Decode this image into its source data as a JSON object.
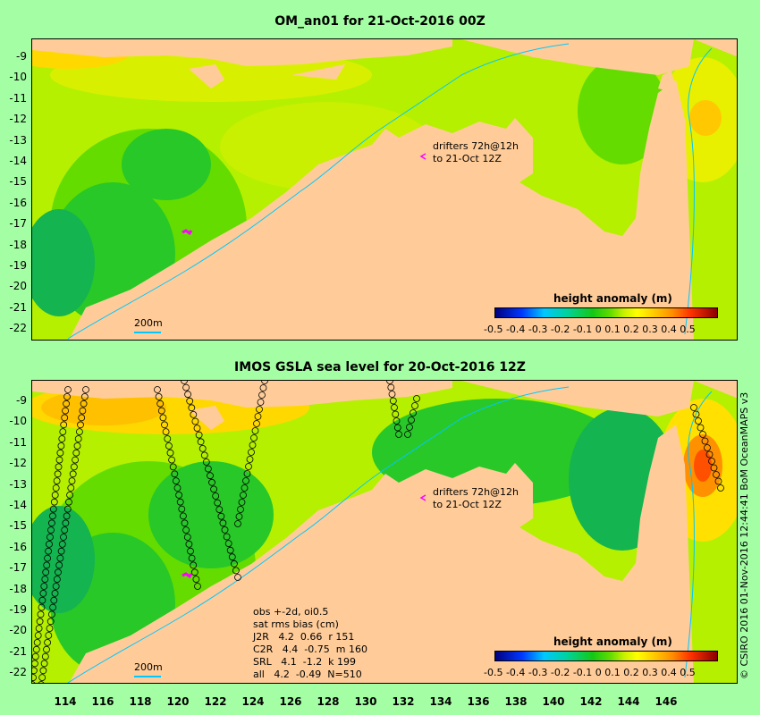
{
  "top_panel": {
    "title": "OM_an01 for 21-Oct-2016 00Z",
    "y_ticks": [
      "-9",
      "-10",
      "-11",
      "-12",
      "-13",
      "-14",
      "-15",
      "-16",
      "-17",
      "-18",
      "-19",
      "-20",
      "-21",
      "-22"
    ],
    "drifter_note_line1": "drifters 72h@12h",
    "drifter_note_line2": "to 21-Oct 12Z",
    "colorbar_title": "height anomaly (m)",
    "colorbar_ticks": "-0.5 -0.4 -0.3 -0.2 -0.1   0   0.1  0.2  0.3  0.4  0.5",
    "scale_label": "200m"
  },
  "bottom_panel": {
    "title": "IMOS GSLA sea level  for 20-Oct-2016 12Z",
    "y_ticks": [
      "-9",
      "-10",
      "-11",
      "-12",
      "-13",
      "-14",
      "-15",
      "-16",
      "-17",
      "-18",
      "-19",
      "-20",
      "-21",
      "-22"
    ],
    "x_ticks": [
      "114",
      "116",
      "118",
      "120",
      "122",
      "124",
      "126",
      "128",
      "130",
      "132",
      "134",
      "136",
      "138",
      "140",
      "142",
      "144",
      "146"
    ],
    "drifter_note_line1": "drifters 72h@12h",
    "drifter_note_line2": "to 21-Oct 12Z",
    "colorbar_title": "height anomaly (m)",
    "colorbar_ticks": "-0.5 -0.4 -0.3 -0.2 -0.1   0   0.1  0.2  0.3  0.4  0.5",
    "scale_label": "200m",
    "stats_line1": "obs +-2d, oi0.5",
    "stats_line2": "sat rms bias (cm)",
    "stats_line3": "J2R   4.2  0.66  r 151",
    "stats_line4": "C2R   4.4  -0.75  m 160",
    "stats_line5": "SRL   4.1  -1.2  k 199",
    "stats_line6": "all   4.2  -0.49  N=510"
  },
  "credit": "© CSIRO 2016  01-Nov-2016 12:44:41 BoM OceanMAPS v3",
  "colors": {
    "background": "#a4ffa4",
    "land": "#ffcc99",
    "sea_base": "#b4f000",
    "accent_drifter": "#ff00ff"
  }
}
